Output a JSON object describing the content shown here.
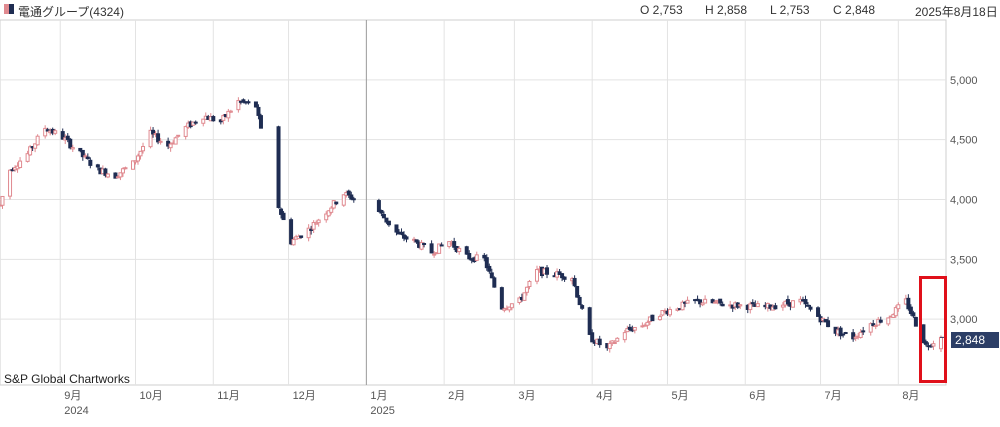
{
  "header": {
    "instrument": "電通グループ(4324)",
    "open": "O 2,753",
    "high": "H 2,858",
    "low": "L 2,753",
    "close": "C 2,848",
    "date": "2025年8月18日"
  },
  "watermark": "S&P Global Chartworks",
  "last_price_label": "2,848",
  "colors": {
    "up": "#e08a90",
    "down": "#1f2d52",
    "highlight": "#e0101a",
    "grid": "#e3e3e3",
    "badge": "#2c3e66"
  },
  "chart_data": {
    "type": "candlestick",
    "title": "電通グループ(4324)",
    "y_axis": {
      "position": "right",
      "ticks": [
        3000,
        3500,
        4000,
        4500,
        5000
      ],
      "tick_labels": [
        "3,000",
        "3,500",
        "4,000",
        "4,500",
        "5,000"
      ],
      "range": [
        2450,
        5500
      ]
    },
    "x_axis": {
      "ticks": [
        {
          "date": "2024-09-01",
          "label": "9月",
          "year": "2024"
        },
        {
          "date": "2024-10-01",
          "label": "10月"
        },
        {
          "date": "2024-11-01",
          "label": "11月"
        },
        {
          "date": "2024-12-01",
          "label": "12月"
        },
        {
          "date": "2025-01-01",
          "label": "1月",
          "year": "2025"
        },
        {
          "date": "2025-02-01",
          "label": "2月"
        },
        {
          "date": "2025-03-01",
          "label": "3月"
        },
        {
          "date": "2025-04-01",
          "label": "4月"
        },
        {
          "date": "2025-05-01",
          "label": "5月"
        },
        {
          "date": "2025-06-01",
          "label": "6月"
        },
        {
          "date": "2025-07-01",
          "label": "7月"
        },
        {
          "date": "2025-08-01",
          "label": "8月"
        }
      ],
      "range": [
        "2024-08-08",
        "2025-08-20"
      ]
    },
    "grid": true,
    "last": {
      "date": "2025-08-18",
      "open": 2753,
      "high": 2858,
      "low": 2753,
      "close": 2848
    },
    "highlight": {
      "from": "2025-08-06",
      "to": "2025-08-20"
    },
    "series_path": [
      [
        "2024-08-08",
        3950
      ],
      [
        "2024-08-12",
        4250
      ],
      [
        "2024-08-19",
        4380
      ],
      [
        "2024-08-26",
        4600
      ],
      [
        "2024-09-02",
        4520
      ],
      [
        "2024-09-09",
        4380
      ],
      [
        "2024-09-16",
        4250
      ],
      [
        "2024-09-23",
        4200
      ],
      [
        "2024-09-30",
        4300
      ],
      [
        "2024-10-07",
        4550
      ],
      [
        "2024-10-14",
        4450
      ],
      [
        "2024-10-21",
        4600
      ],
      [
        "2024-10-28",
        4700
      ],
      [
        "2024-11-04",
        4650
      ],
      [
        "2024-11-11",
        4820
      ],
      [
        "2024-11-18",
        4780
      ],
      [
        "2024-11-25",
        4060
      ],
      [
        "2024-12-02",
        3650
      ],
      [
        "2024-12-09",
        3750
      ],
      [
        "2024-12-16",
        3900
      ],
      [
        "2024-12-23",
        4050
      ],
      [
        "2025-01-06",
        3900
      ],
      [
        "2025-01-14",
        3700
      ],
      [
        "2025-01-20",
        3650
      ],
      [
        "2025-01-27",
        3560
      ],
      [
        "2025-02-03",
        3650
      ],
      [
        "2025-02-10",
        3520
      ],
      [
        "2025-02-17",
        3500
      ],
      [
        "2025-02-24",
        3100
      ],
      [
        "2025-03-03",
        3150
      ],
      [
        "2025-03-10",
        3400
      ],
      [
        "2025-03-17",
        3380
      ],
      [
        "2025-03-24",
        3350
      ],
      [
        "2025-03-31",
        2850
      ],
      [
        "2025-04-07",
        2750
      ],
      [
        "2025-04-14",
        2900
      ],
      [
        "2025-04-21",
        2950
      ],
      [
        "2025-04-28",
        3050
      ],
      [
        "2025-05-12",
        3150
      ],
      [
        "2025-05-26",
        3120
      ],
      [
        "2025-06-09",
        3100
      ],
      [
        "2025-06-23",
        3150
      ],
      [
        "2025-07-07",
        2900
      ],
      [
        "2025-07-14",
        2850
      ],
      [
        "2025-07-21",
        2960
      ],
      [
        "2025-07-28",
        3020
      ],
      [
        "2025-08-04",
        3150
      ],
      [
        "2025-08-12",
        2780
      ],
      [
        "2025-08-18",
        2848
      ]
    ]
  }
}
